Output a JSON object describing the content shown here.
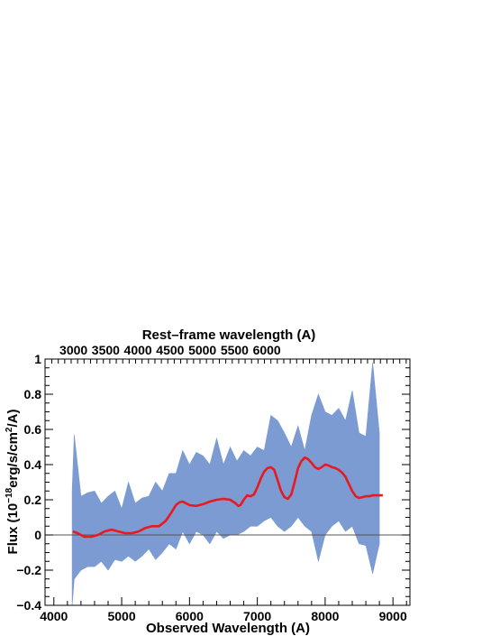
{
  "chart_data": {
    "type": "line",
    "xlabel": "Observed Wavelength (A)",
    "top_xlabel": "Rest–frame wavelength (A)",
    "ylabel": {
      "prefix": "Flux (10",
      "exp1": "−18",
      "mid": "erg/s/cm",
      "exp2": "2",
      "suffix": "/A)"
    },
    "xlim": [
      3870,
      9250
    ],
    "ylim": [
      -0.4,
      1.0
    ],
    "x_ticks": [
      {
        "value": 4000,
        "label": "4000"
      },
      {
        "value": 5000,
        "label": "5000"
      },
      {
        "value": 6000,
        "label": "6000"
      },
      {
        "value": 7000,
        "label": "7000"
      },
      {
        "value": 8000,
        "label": "8000"
      },
      {
        "value": 9000,
        "label": "9000"
      }
    ],
    "y_ticks": [
      {
        "value": -0.4,
        "label": "−0.4"
      },
      {
        "value": -0.2,
        "label": "−0.2"
      },
      {
        "value": 0,
        "label": "0"
      },
      {
        "value": 0.2,
        "label": "0.2"
      },
      {
        "value": 0.4,
        "label": "0.4"
      },
      {
        "value": 0.6,
        "label": "0.6"
      },
      {
        "value": 0.8,
        "label": "0.8"
      },
      {
        "value": 1,
        "label": "1"
      }
    ],
    "top_ticks": [
      {
        "value": 4290,
        "label": "3000"
      },
      {
        "value": 4765,
        "label": "3500"
      },
      {
        "value": 5240,
        "label": "4000"
      },
      {
        "value": 5715,
        "label": "4500"
      },
      {
        "value": 6190,
        "label": "5000"
      },
      {
        "value": 6665,
        "label": "5500"
      },
      {
        "value": 7140,
        "label": "6000"
      }
    ],
    "zero_line": 0,
    "grid": false,
    "colors": {
      "spectrum": "#7b9bd2",
      "smoothed": "#e8191f",
      "zero": "#555555"
    },
    "series": [
      {
        "role": "spectrum-envelope",
        "x": [
          4270,
          4300,
          4400,
          4500,
          4600,
          4700,
          4800,
          4900,
          5000,
          5100,
          5200,
          5300,
          5400,
          5500,
          5600,
          5700,
          5800,
          5900,
          6000,
          6100,
          6200,
          6300,
          6400,
          6500,
          6600,
          6700,
          6800,
          6900,
          7000,
          7100,
          7200,
          7300,
          7400,
          7500,
          7600,
          7700,
          7800,
          7900,
          8000,
          8100,
          8200,
          8300,
          8400,
          8500,
          8600,
          8700,
          8800
        ],
        "high": [
          0.25,
          0.57,
          0.22,
          0.24,
          0.25,
          0.18,
          0.22,
          0.25,
          0.15,
          0.3,
          0.18,
          0.21,
          0.22,
          0.3,
          0.25,
          0.35,
          0.35,
          0.48,
          0.4,
          0.47,
          0.45,
          0.4,
          0.55,
          0.4,
          0.5,
          0.42,
          0.48,
          0.45,
          0.5,
          0.48,
          0.68,
          0.65,
          0.58,
          0.5,
          0.62,
          0.48,
          0.68,
          0.8,
          0.7,
          0.68,
          0.72,
          0.65,
          0.82,
          0.58,
          0.56,
          0.98,
          0.58
        ],
        "low": [
          -0.4,
          -0.25,
          -0.2,
          -0.18,
          -0.18,
          -0.15,
          -0.2,
          -0.14,
          -0.15,
          -0.12,
          -0.15,
          -0.12,
          -0.08,
          -0.14,
          -0.1,
          -0.05,
          -0.08,
          0.02,
          -0.05,
          0.02,
          0.0,
          -0.05,
          0.02,
          -0.02,
          0.0,
          0.0,
          0.02,
          0.05,
          0.05,
          0.08,
          0.1,
          0.05,
          0.02,
          0.05,
          0.1,
          0.05,
          0.02,
          -0.15,
          0.0,
          0.05,
          0.08,
          0.02,
          0.05,
          -0.05,
          -0.06,
          -0.22,
          -0.05
        ]
      },
      {
        "role": "smoothed",
        "x": [
          4280,
          4350,
          4450,
          4550,
          4650,
          4750,
          4850,
          4950,
          5050,
          5150,
          5250,
          5350,
          5450,
          5550,
          5650,
          5720,
          5800,
          5850,
          5900,
          5950,
          6000,
          6100,
          6200,
          6300,
          6400,
          6500,
          6600,
          6680,
          6720,
          6750,
          6800,
          6850,
          6900,
          6950,
          7000,
          7050,
          7100,
          7150,
          7200,
          7250,
          7300,
          7350,
          7400,
          7450,
          7500,
          7550,
          7600,
          7650,
          7700,
          7750,
          7800,
          7850,
          7900,
          7950,
          8000,
          8050,
          8100,
          8150,
          8200,
          8250,
          8300,
          8350,
          8400,
          8450,
          8500,
          8550,
          8600,
          8650,
          8700,
          8750,
          8800,
          8850
        ],
        "y": [
          0.02,
          0.01,
          -0.01,
          -0.01,
          0.0,
          0.02,
          0.03,
          0.02,
          0.01,
          0.01,
          0.02,
          0.04,
          0.05,
          0.05,
          0.08,
          0.12,
          0.17,
          0.185,
          0.19,
          0.18,
          0.17,
          0.165,
          0.175,
          0.19,
          0.2,
          0.205,
          0.2,
          0.18,
          0.165,
          0.17,
          0.2,
          0.225,
          0.22,
          0.23,
          0.27,
          0.32,
          0.36,
          0.38,
          0.385,
          0.37,
          0.31,
          0.25,
          0.215,
          0.205,
          0.23,
          0.3,
          0.38,
          0.42,
          0.44,
          0.43,
          0.41,
          0.385,
          0.375,
          0.385,
          0.4,
          0.395,
          0.385,
          0.38,
          0.37,
          0.355,
          0.33,
          0.29,
          0.25,
          0.22,
          0.21,
          0.215,
          0.22,
          0.22,
          0.225,
          0.225,
          0.225,
          0.225
        ]
      }
    ]
  }
}
